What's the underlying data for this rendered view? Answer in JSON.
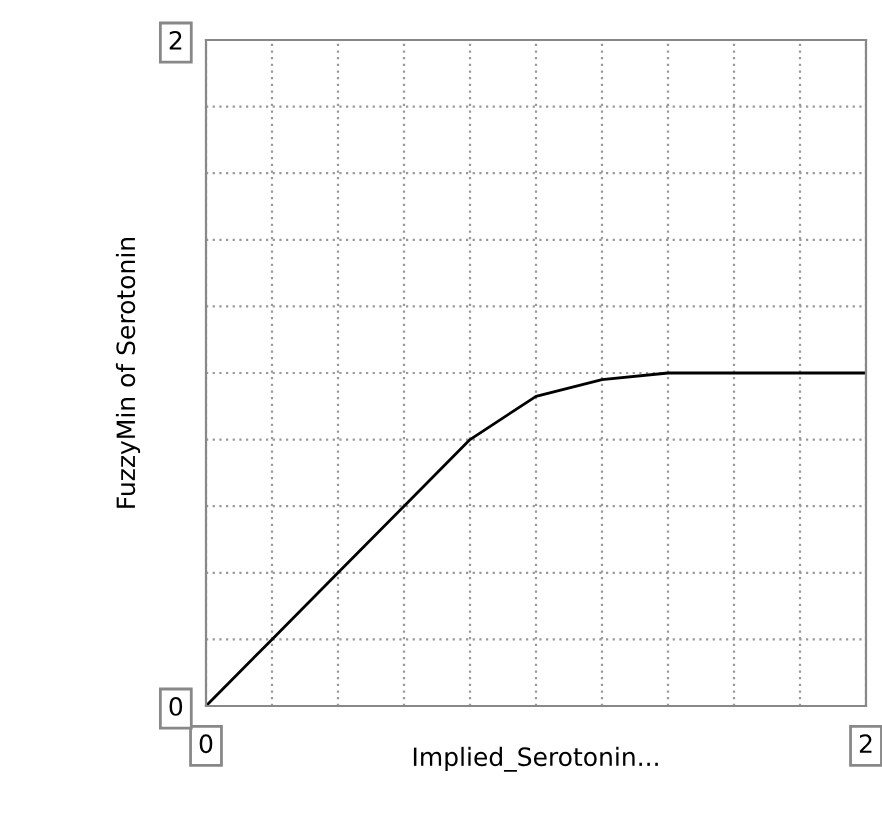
{
  "chart_data": {
    "type": "line",
    "xlabel": "Implied_Serotonin...",
    "ylabel": "FuzzyMin of Serotonin",
    "x": [
      0,
      0.2,
      0.4,
      0.6,
      0.8,
      1.0,
      1.2,
      1.4,
      1.6,
      1.8,
      2.0
    ],
    "series": [
      {
        "color": "#000000",
        "values": [
          0,
          0.2,
          0.4,
          0.6,
          0.8,
          0.93,
          0.98,
          1.0,
          1.0,
          1.0,
          1.0
        ]
      }
    ],
    "xlim": [
      0,
      2
    ],
    "ylim": [
      0,
      2
    ],
    "xticks": [
      0,
      {
        "value": 0.2,
        "label": null
      },
      {
        "value": 0.4,
        "label": null
      },
      {
        "value": 0.6,
        "label": null
      },
      {
        "value": 0.8,
        "label": null
      },
      {
        "value": 1.0,
        "label": null
      },
      {
        "value": 1.2,
        "label": null
      },
      {
        "value": 1.4,
        "label": null
      },
      {
        "value": 1.6,
        "label": null
      },
      {
        "value": 1.8,
        "label": null
      },
      2
    ],
    "yticks": [
      0,
      {
        "value": 0.2,
        "label": null
      },
      {
        "value": 0.4,
        "label": null
      },
      {
        "value": 0.6,
        "label": null
      },
      {
        "value": 0.8,
        "label": null
      },
      {
        "value": 1.0,
        "label": null
      },
      {
        "value": 1.2,
        "label": null
      },
      {
        "value": 1.4,
        "label": null
      },
      {
        "value": 1.6,
        "label": null
      },
      {
        "value": 1.8,
        "label": null
      },
      2
    ],
    "grid": true,
    "line_style": "solid",
    "marker": "none"
  }
}
